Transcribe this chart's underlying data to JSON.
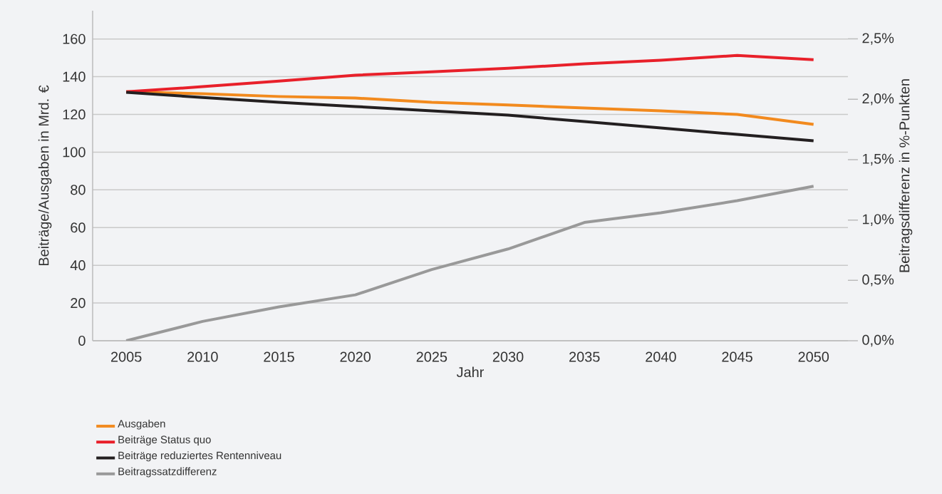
{
  "chart_data": {
    "type": "line",
    "xlabel": "Jahr",
    "ylabel": "Beiträge/Ausgaben in Mrd. €",
    "y2label": "Beitragsdifferenz in %-Punkten",
    "categories": [
      "2005",
      "2010",
      "2015",
      "2020",
      "2025",
      "2030",
      "2035",
      "2040",
      "2045",
      "2050"
    ],
    "series": [
      {
        "name": "Ausgaben",
        "color": "#f28a1e",
        "values": [
          132,
          131,
          129.5,
          128.7,
          126.4,
          125,
          123.4,
          121.9,
          120,
          114.7
        ]
      },
      {
        "name": "Beiträge Status quo",
        "color": "#e8202a",
        "values": [
          132,
          134.7,
          137.7,
          140.8,
          142.6,
          144.5,
          146.8,
          148.7,
          151.3,
          149
        ]
      },
      {
        "name": "Beiträge reduziertes Rentenniveau",
        "color": "#231f20",
        "values": [
          131.7,
          129,
          126.4,
          124.2,
          121.9,
          119.6,
          116.2,
          112.8,
          109.4,
          106
        ]
      },
      {
        "name": "Beitragssatzdifferenz",
        "color": "#999999",
        "axis": "y2",
        "values": [
          0,
          0.16,
          0.28,
          0.38,
          0.59,
          0.76,
          0.98,
          1.06,
          1.16,
          1.28
        ]
      }
    ],
    "ylim": [
      0,
      175
    ],
    "yticks": [
      0,
      20,
      40,
      60,
      80,
      100,
      120,
      140,
      160
    ],
    "y2lim": [
      0,
      2.734
    ],
    "y2ticks": [
      {
        "value": 0,
        "label": "0,0%"
      },
      {
        "value": 0.5,
        "label": "0,5%"
      },
      {
        "value": 1,
        "label": "1,0%"
      },
      {
        "value": 1.5,
        "label": "1,5%"
      },
      {
        "value": 2,
        "label": "2,0%"
      },
      {
        "value": 2.5,
        "label": "2,5%"
      }
    ],
    "grid": "y",
    "legend": "bottom left",
    "marker": "none",
    "line_style": "solid"
  }
}
